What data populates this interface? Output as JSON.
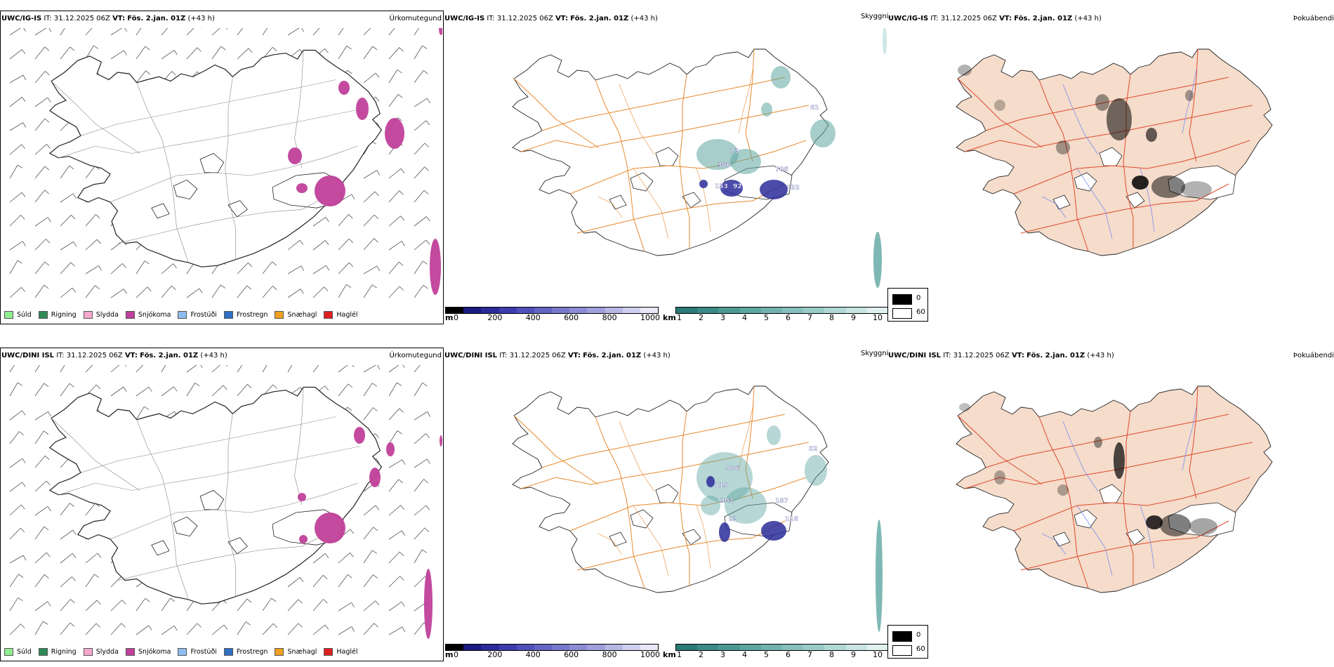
{
  "rows": [
    {
      "model": "UWC/IG-IS",
      "it_label": "IT:",
      "it_value": "31.12.2025 06Z",
      "vt_label": "VT:",
      "vt_value": "Fös. 2.jan. 01Z",
      "lead": "(+43 h)",
      "panels": {
        "precip_type": "Úrkomutegund",
        "visibility": "Skyggni",
        "cloud": "Þokuábendi"
      },
      "visibility_values": [
        "73",
        "300",
        "153",
        "92",
        "706",
        "132",
        "61"
      ]
    },
    {
      "model": "UWC/DINI ISL",
      "it_label": "IT:",
      "it_value": "31.12.2025 06Z",
      "vt_label": "VT:",
      "vt_value": "Fös. 2.jan. 01Z",
      "lead": "(+43 h)",
      "panels": {
        "precip_type": "Úrkomutegund",
        "visibility": "Skyggni",
        "cloud": "Þokuábendi"
      },
      "visibility_values": [
        "586",
        "115",
        "302",
        "93",
        "187",
        "116",
        "52"
      ]
    }
  ],
  "precip_legend": [
    {
      "label": "Súld",
      "color": "#90ee90"
    },
    {
      "label": "Rigning",
      "color": "#2e8b57"
    },
    {
      "label": "Slydda",
      "color": "#f7a8d0"
    },
    {
      "label": "Snjókoma",
      "color": "#c0409a"
    },
    {
      "label": "Frostúði",
      "color": "#8fbcef"
    },
    {
      "label": "Frostregn",
      "color": "#2f6fc4"
    },
    {
      "label": "Snæhagl",
      "color": "#f0a020"
    },
    {
      "label": "Haglél",
      "color": "#e02020"
    }
  ],
  "colorbar_m": {
    "unit": "m",
    "ticks": [
      "0",
      "200",
      "400",
      "600",
      "800",
      "1000"
    ],
    "colors": [
      "#000000",
      "#1a1a80",
      "#2b2b9a",
      "#3c3cae",
      "#5050ba",
      "#6464c4",
      "#7878cc",
      "#8c8cd4",
      "#a0a0dc",
      "#b8b8e6",
      "#d0d0ee",
      "#e8e8f8"
    ]
  },
  "colorbar_km": {
    "unit": "km",
    "ticks": [
      "1",
      "2",
      "3",
      "4",
      "5",
      "6",
      "7",
      "8",
      "9",
      "10"
    ],
    "colors": [
      "#2a7a75",
      "#3a8a85",
      "#4c9994",
      "#5ea6a1",
      "#72b2ae",
      "#86bfbb",
      "#9acbc7",
      "#b0d8d5",
      "#c8e5e3",
      "#e0f1f0"
    ]
  },
  "cloud_legend": [
    {
      "label": "0",
      "color": "#000000"
    },
    {
      "label": "60",
      "color": "#ffffff"
    }
  ]
}
